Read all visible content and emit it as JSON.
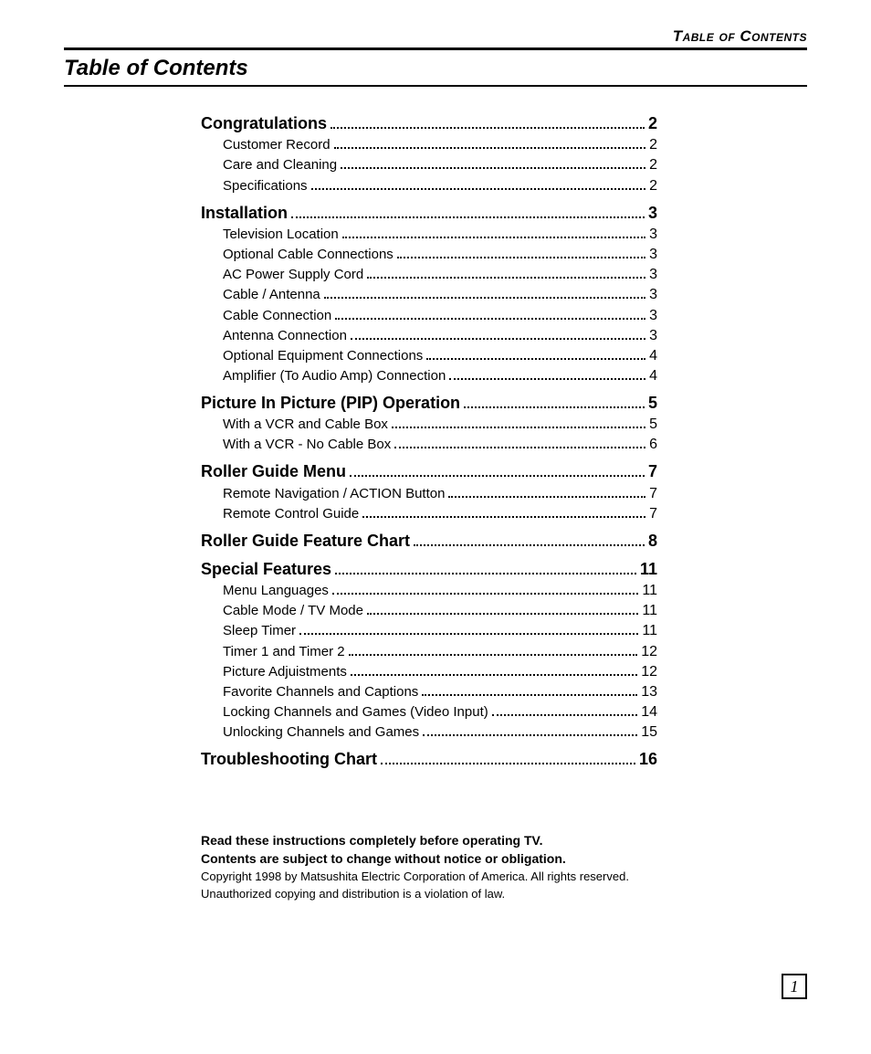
{
  "running_head": "Table of Contents",
  "title": "Table of Contents",
  "toc": [
    {
      "type": "section",
      "label": "Congratulations",
      "page": "2"
    },
    {
      "type": "sub",
      "label": "Customer Record",
      "page": "2"
    },
    {
      "type": "sub",
      "label": "Care and Cleaning",
      "page": "2"
    },
    {
      "type": "sub",
      "label": "Specifications",
      "page": "2"
    },
    {
      "type": "section",
      "label": "Installation",
      "page": "3"
    },
    {
      "type": "sub",
      "label": "Television Location",
      "page": "3"
    },
    {
      "type": "sub",
      "label": "Optional Cable Connections",
      "page": "3"
    },
    {
      "type": "sub",
      "label": "AC Power Supply Cord",
      "page": "3"
    },
    {
      "type": "sub",
      "label": "Cable / Antenna",
      "page": "3"
    },
    {
      "type": "sub",
      "label": "Cable Connection",
      "page": "3"
    },
    {
      "type": "sub",
      "label": "Antenna Connection",
      "page": "3"
    },
    {
      "type": "sub",
      "label": "Optional Equipment Connections",
      "page": "4"
    },
    {
      "type": "sub",
      "label": "Amplifier (To Audio Amp) Connection",
      "page": "4"
    },
    {
      "type": "section",
      "label": "Picture In Picture (PIP) Operation",
      "page": "5"
    },
    {
      "type": "sub",
      "label": "With a VCR and Cable Box",
      "page": "5"
    },
    {
      "type": "sub",
      "label": "With a VCR - No Cable Box",
      "page": "6"
    },
    {
      "type": "section",
      "label": "Roller Guide Menu",
      "page": "7"
    },
    {
      "type": "sub",
      "label": "Remote Navigation / ACTION Button",
      "page": "7"
    },
    {
      "type": "sub",
      "label": "Remote Control Guide",
      "page": "7"
    },
    {
      "type": "section",
      "label": "Roller Guide Feature Chart",
      "page": "8"
    },
    {
      "type": "section",
      "label": "Special Features",
      "page": "11"
    },
    {
      "type": "sub",
      "label": "Menu Languages",
      "page": "11"
    },
    {
      "type": "sub",
      "label": "Cable Mode / TV Mode",
      "page": "11"
    },
    {
      "type": "sub",
      "label": "Sleep Timer",
      "page": "11"
    },
    {
      "type": "sub",
      "label": "Timer 1 and Timer 2",
      "page": "12"
    },
    {
      "type": "sub",
      "label": "Picture Adjuistments",
      "page": "12"
    },
    {
      "type": "sub",
      "label": "Favorite Channels and Captions",
      "page": "13"
    },
    {
      "type": "sub",
      "label": "Locking Channels and Games (Video Input)",
      "page": "14"
    },
    {
      "type": "sub",
      "label": "Unlocking Channels and Games",
      "page": "15"
    },
    {
      "type": "section",
      "label": "Troubleshooting Chart",
      "page": "16"
    }
  ],
  "notes": {
    "line1": "Read these instructions completely before operating TV.",
    "line2": "Contents are subject to change without notice or obligation.",
    "copyright1": "Copyright 1998 by Matsushita Electric Corporation of America.  All rights reserved.",
    "copyright2": "Unauthorized copying and distribution is a violation of law."
  },
  "page_number": "1"
}
